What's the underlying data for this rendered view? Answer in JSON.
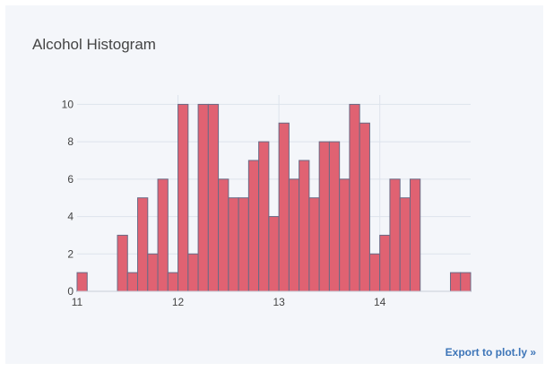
{
  "export_link": "Export to plot.ly »",
  "chart_data": {
    "type": "bar",
    "title": "Alcohol Histogram",
    "xlabel": "",
    "ylabel": "",
    "xlim": [
      11,
      14.9
    ],
    "ylim": [
      0,
      10.5
    ],
    "xticks": [
      11,
      12,
      13,
      14
    ],
    "yticks": [
      0,
      2,
      4,
      6,
      8,
      10
    ],
    "bin_width": 0.1,
    "bin_starts": [
      11.0,
      11.1,
      11.2,
      11.3,
      11.4,
      11.5,
      11.6,
      11.7,
      11.8,
      11.9,
      12.0,
      12.1,
      12.2,
      12.3,
      12.4,
      12.5,
      12.6,
      12.7,
      12.8,
      12.9,
      13.0,
      13.1,
      13.2,
      13.3,
      13.4,
      13.5,
      13.6,
      13.7,
      13.8,
      13.9,
      14.0,
      14.1,
      14.2,
      14.3,
      14.4,
      14.5,
      14.6,
      14.7,
      14.8
    ],
    "values": [
      1,
      0,
      0,
      0,
      3,
      1,
      5,
      2,
      6,
      1,
      10,
      2,
      10,
      10,
      6,
      5,
      5,
      7,
      8,
      4,
      9,
      6,
      7,
      5,
      8,
      8,
      6,
      10,
      9,
      2,
      3,
      6,
      5,
      6,
      0,
      0,
      0,
      1,
      1
    ],
    "bar_color": "#e06272",
    "bar_outline": "#6a6a85",
    "grid": true
  }
}
